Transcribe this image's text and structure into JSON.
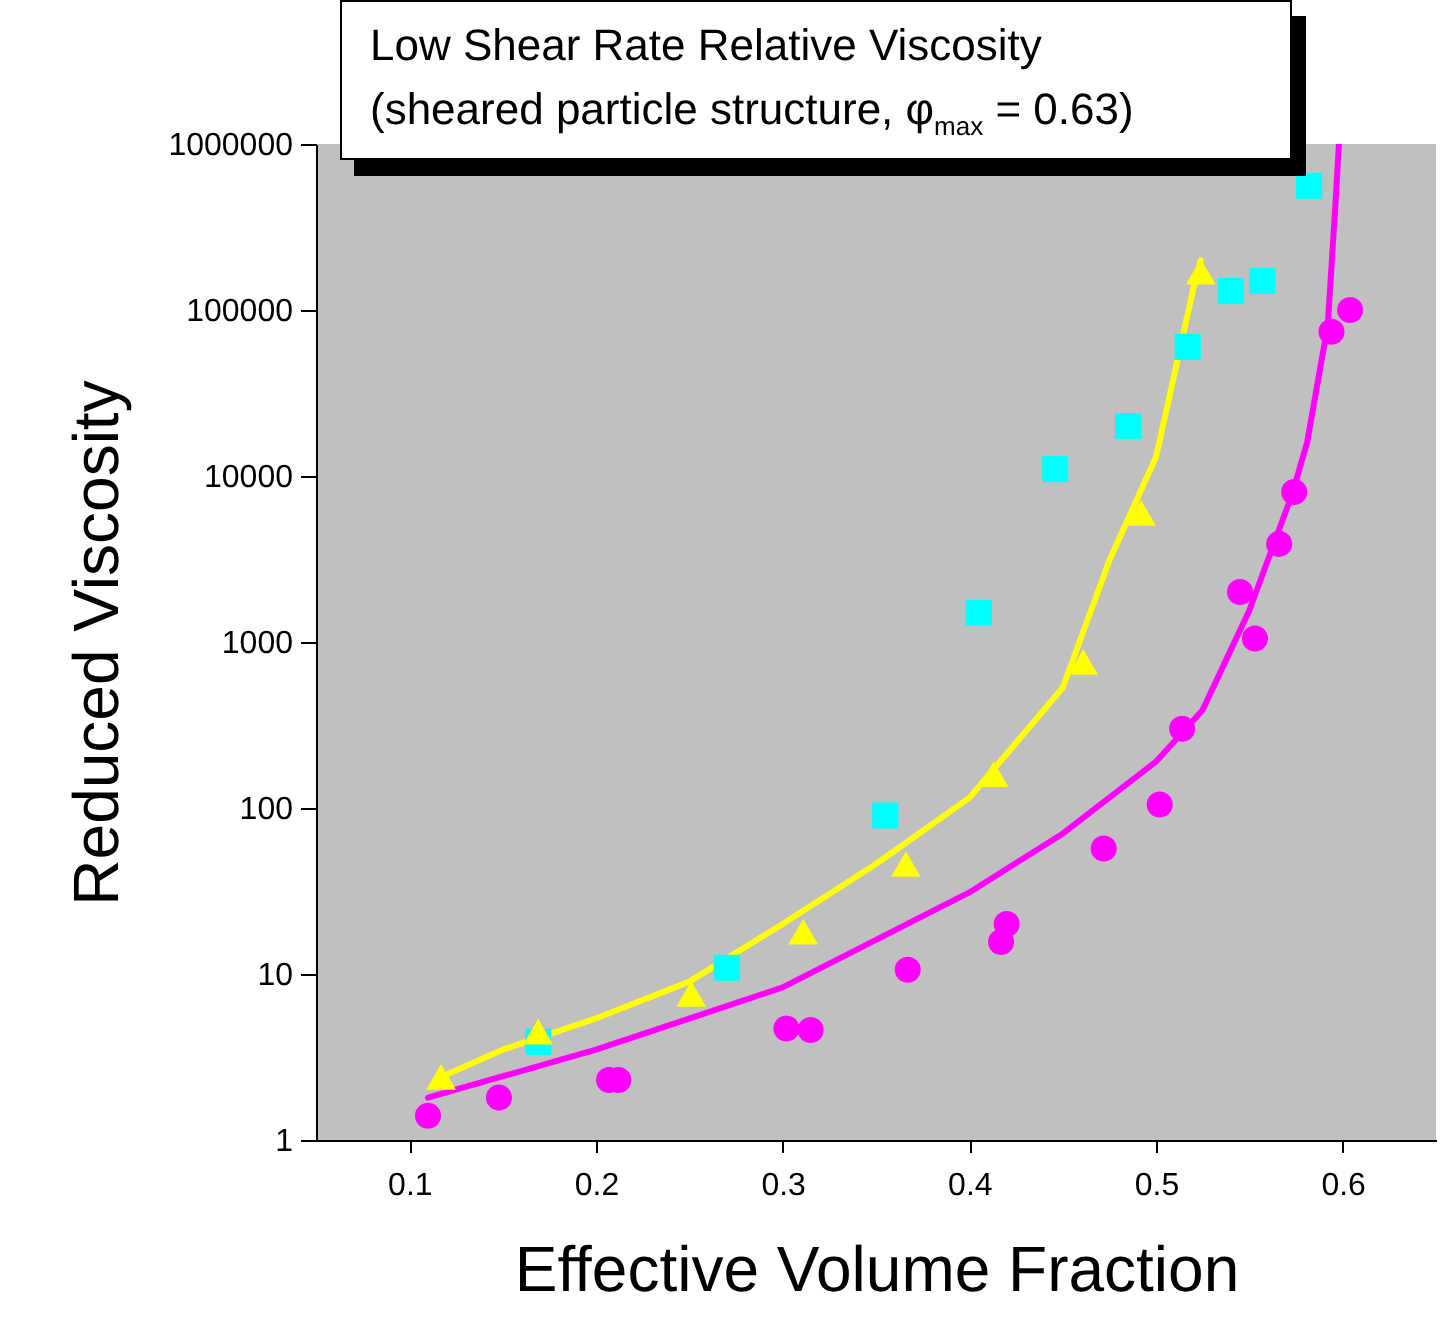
{
  "chart_data": {
    "type": "scatter",
    "title": "Low Shear Rate Relative Viscosity\n(sheared particle structure, φ$_{max}$ = 0.63)",
    "xlabel": "Effective Volume Fraction",
    "ylabel": "Reduced Viscosity",
    "log": "y",
    "grid": false,
    "xlim": [
      0.05,
      0.65
    ],
    "xticks": [
      0.1,
      0.2,
      0.3,
      0.4,
      0.5,
      0.6
    ],
    "ylim": [
      1,
      1000000
    ],
    "yticks": [
      1,
      10,
      100,
      1000,
      10000,
      100000,
      1000000
    ],
    "series": [
      {
        "type": "line",
        "marker": "none",
        "color": "#ffff00",
        "x": [
          0.117,
          0.15,
          0.2,
          0.25,
          0.3,
          0.35,
          0.4,
          0.45,
          0.475,
          0.5,
          0.52,
          0.524
        ],
        "values": [
          2.4,
          3.5,
          5.4,
          9,
          20,
          46,
          115,
          530,
          3100,
          13000,
          135000,
          200000
        ]
      },
      {
        "type": "line",
        "marker": "none",
        "color": "#ff00ff",
        "x": [
          0.11,
          0.2,
          0.3,
          0.4,
          0.45,
          0.5,
          0.525,
          0.55,
          0.573,
          0.581,
          0.592,
          0.596,
          0.598
        ],
        "values": [
          1.8,
          3.5,
          8.3,
          31,
          70,
          190,
          390,
          1550,
          7800,
          16000,
          81000,
          410000,
          1000000
        ]
      },
      {
        "type": "scatter",
        "marker": "square",
        "color": "#00ffff",
        "x": [
          0.169,
          0.27,
          0.355,
          0.405,
          0.446,
          0.485,
          0.517,
          0.54,
          0.557,
          0.582
        ],
        "values": [
          3.9,
          10.9,
          90,
          1500,
          11000,
          20000,
          60000,
          130000,
          150000,
          560000
        ]
      },
      {
        "type": "scatter",
        "marker": "triangle",
        "color": "#ffff00",
        "x": [
          0.117,
          0.169,
          0.251,
          0.311,
          0.366,
          0.413,
          0.461,
          0.492,
          0.524
        ],
        "values": [
          2.4,
          4.5,
          7.6,
          18,
          46,
          160,
          760,
          6000,
          170000
        ]
      },
      {
        "type": "scatter",
        "marker": "circle",
        "color": "#ff00ff",
        "x": [
          0.11,
          0.148,
          0.207,
          0.212,
          0.302,
          0.315,
          0.367,
          0.417,
          0.42,
          0.472,
          0.502,
          0.514,
          0.545,
          0.553,
          0.566,
          0.574,
          0.594,
          0.604
        ],
        "values": [
          1.4,
          1.8,
          2.3,
          2.3,
          4.7,
          4.6,
          10.6,
          15.6,
          20,
          57,
          105,
          300,
          2000,
          1050,
          3900,
          8000,
          74000,
          100000
        ]
      }
    ]
  }
}
